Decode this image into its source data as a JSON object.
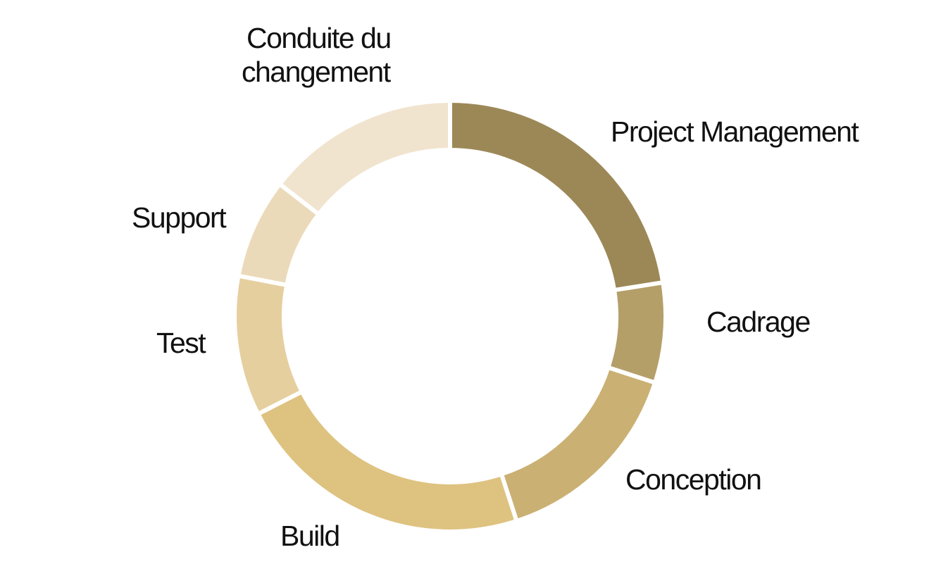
{
  "chart_data": {
    "type": "pie",
    "donut": true,
    "categories": [
      "Project Management",
      "Cadrage",
      "Conception",
      "Build",
      "Test",
      "Support",
      "Conduite du changement"
    ],
    "values": [
      22.5,
      7.5,
      15,
      22.5,
      10.5,
      7.5,
      14.5
    ],
    "colors": [
      "#9c8857",
      "#b59f69",
      "#cab073",
      "#dec280",
      "#e6cf9f",
      "#ebdab9",
      "#f1e4cf"
    ],
    "labels": {
      "pm": "Project Management",
      "cadrage": "Cadrage",
      "conception": "Conception",
      "build": "Build",
      "test": "Test",
      "support": "Support",
      "conduite_1": "Conduite du",
      "conduite_2": "changement"
    },
    "legend": "none"
  }
}
